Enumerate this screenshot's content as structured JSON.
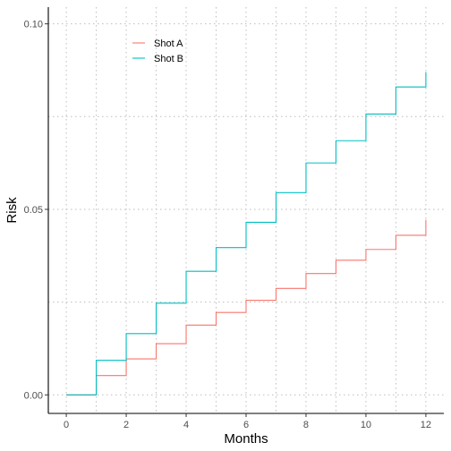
{
  "chart_data": {
    "type": "line",
    "step": true,
    "title": "",
    "xlabel": "Months",
    "ylabel": "Risk",
    "xlim": [
      -0.6,
      12.6
    ],
    "ylim": [
      -0.005,
      0.1045
    ],
    "x_ticks": [
      0,
      2,
      4,
      6,
      8,
      10,
      12
    ],
    "x_tick_labels": [
      "0",
      "2",
      "4",
      "6",
      "8",
      "10",
      "12"
    ],
    "y_ticks": [
      0.0,
      0.05,
      0.1
    ],
    "y_tick_labels": [
      "0.00",
      "0.05",
      "0.10"
    ],
    "grid": true,
    "legend_position": "top-left",
    "series": [
      {
        "name": "Shot A",
        "color": "#F8766D",
        "x": [
          0,
          1,
          2,
          3,
          4,
          5,
          6,
          7,
          8,
          9,
          10,
          11,
          12
        ],
        "y": [
          0.0,
          0.0052,
          0.0097,
          0.0138,
          0.0188,
          0.0222,
          0.0255,
          0.0287,
          0.0327,
          0.0363,
          0.0392,
          0.043,
          0.0472
        ]
      },
      {
        "name": "Shot B",
        "color": "#00BFC4",
        "x": [
          0,
          1,
          2,
          3,
          4,
          5,
          6,
          7,
          8,
          9,
          10,
          11,
          12
        ],
        "y": [
          0.0,
          0.0093,
          0.0165,
          0.0247,
          0.0333,
          0.0397,
          0.0465,
          0.0545,
          0.0625,
          0.0685,
          0.0757,
          0.083,
          0.087
        ]
      }
    ]
  }
}
